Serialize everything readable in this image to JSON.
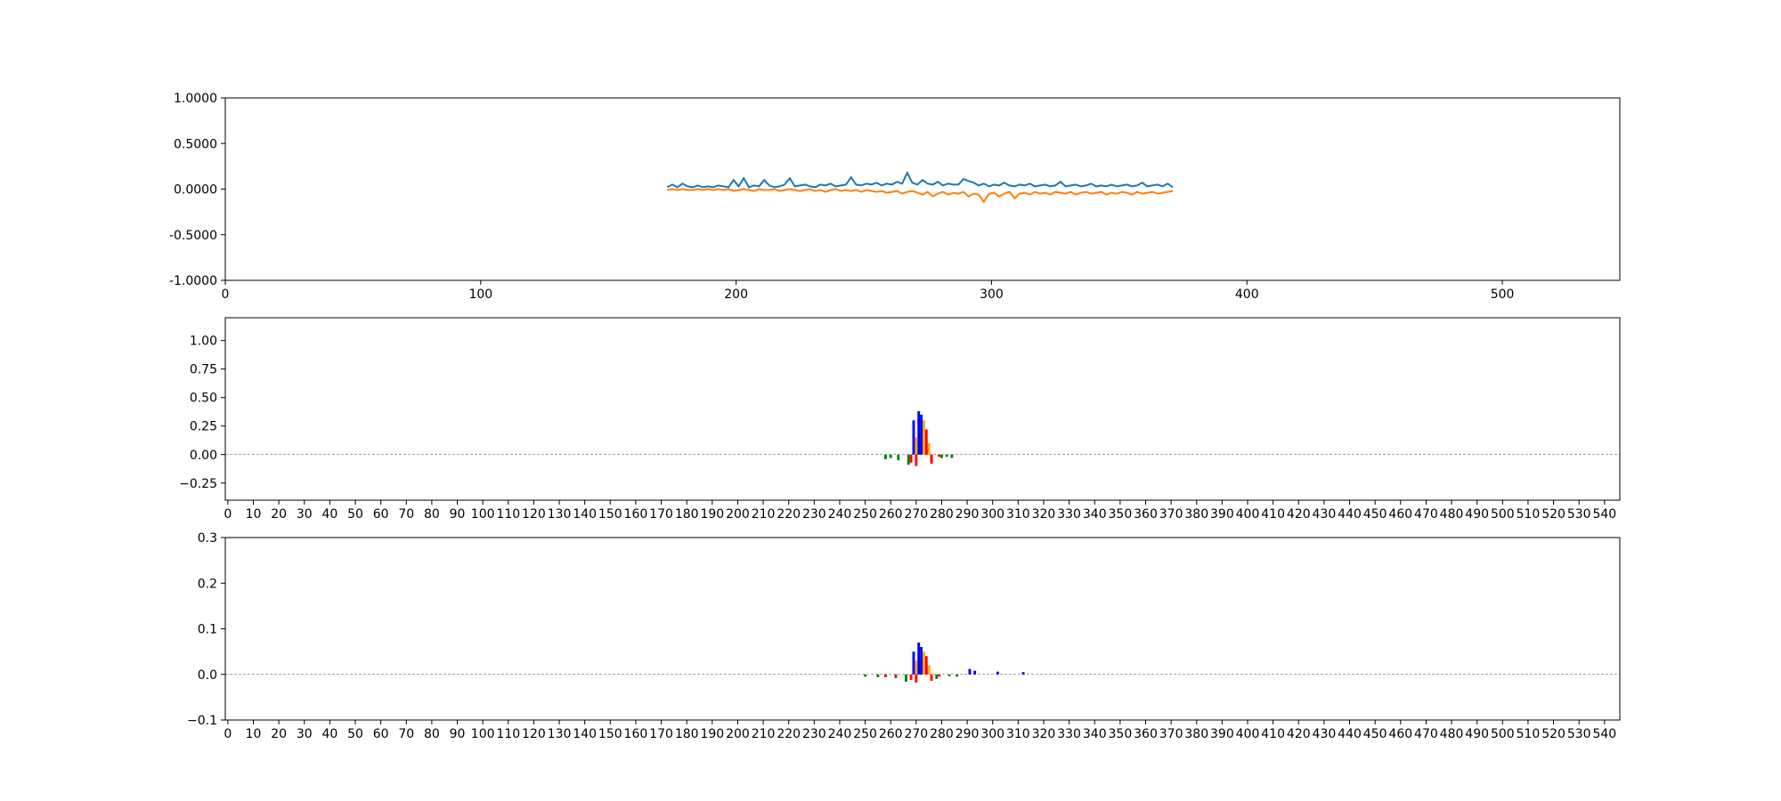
{
  "figure": {
    "background": "#ffffff"
  },
  "chart_data": [
    {
      "id": "panel-1",
      "type": "line",
      "title": "",
      "xlabel": "",
      "ylabel": "",
      "xlim": [
        0,
        546
      ],
      "ylim": [
        -1,
        1
      ],
      "x_ticks": [
        0,
        100,
        200,
        300,
        400,
        500
      ],
      "y_ticks": [
        -1,
        -0.5,
        0,
        0.5,
        1
      ],
      "y_tick_labels": [
        "-1.0000",
        "-0.5000",
        "0.0000",
        "0.5000",
        "1.0000"
      ],
      "grid": false,
      "series": [
        {
          "color": "#1f77b4",
          "x": [
            173,
            175,
            177,
            179,
            181,
            183,
            185,
            187,
            189,
            191,
            193,
            195,
            197,
            199,
            201,
            203,
            205,
            207,
            209,
            211,
            213,
            215,
            217,
            219,
            221,
            223,
            225,
            227,
            229,
            231,
            233,
            235,
            237,
            239,
            241,
            243,
            245,
            247,
            249,
            251,
            253,
            255,
            257,
            259,
            261,
            263,
            265,
            267,
            269,
            271,
            273,
            275,
            277,
            279,
            281,
            283,
            285,
            287,
            289,
            291,
            293,
            295,
            297,
            299,
            301,
            303,
            305,
            307,
            309,
            311,
            313,
            315,
            317,
            319,
            321,
            323,
            325,
            327,
            329,
            331,
            333,
            335,
            337,
            339,
            341,
            343,
            345,
            347,
            349,
            351,
            353,
            355,
            357,
            359,
            361,
            363,
            365,
            367,
            369,
            371
          ],
          "y": [
            0.02,
            0.05,
            0.02,
            0.06,
            0.03,
            0.02,
            0.04,
            0.02,
            0.03,
            0.02,
            0.04,
            0.03,
            0.02,
            0.1,
            0.03,
            0.12,
            0.02,
            0.04,
            0.03,
            0.1,
            0.04,
            0.02,
            0.03,
            0.05,
            0.12,
            0.03,
            0.04,
            0.05,
            0.03,
            0.02,
            0.05,
            0.04,
            0.06,
            0.03,
            0.04,
            0.05,
            0.13,
            0.05,
            0.04,
            0.06,
            0.05,
            0.07,
            0.04,
            0.06,
            0.05,
            0.08,
            0.06,
            0.18,
            0.07,
            0.05,
            0.1,
            0.06,
            0.05,
            0.08,
            0.04,
            0.06,
            0.05,
            0.05,
            0.11,
            0.09,
            0.07,
            0.04,
            0.06,
            0.03,
            0.05,
            0.04,
            0.07,
            0.04,
            0.03,
            0.05,
            0.04,
            0.06,
            0.03,
            0.04,
            0.05,
            0.03,
            0.04,
            0.08,
            0.03,
            0.04,
            0.05,
            0.03,
            0.04,
            0.06,
            0.03,
            0.04,
            0.03,
            0.05,
            0.03,
            0.04,
            0.05,
            0.03,
            0.04,
            0.07,
            0.03,
            0.04,
            0.05,
            0.03,
            0.06,
            0.02
          ]
        },
        {
          "color": "#ff7f0e",
          "x": [
            173,
            175,
            177,
            179,
            181,
            183,
            185,
            187,
            189,
            191,
            193,
            195,
            197,
            199,
            201,
            203,
            205,
            207,
            209,
            211,
            213,
            215,
            217,
            219,
            221,
            223,
            225,
            227,
            229,
            231,
            233,
            235,
            237,
            239,
            241,
            243,
            245,
            247,
            249,
            251,
            253,
            255,
            257,
            259,
            261,
            263,
            265,
            267,
            269,
            271,
            273,
            275,
            277,
            279,
            281,
            283,
            285,
            287,
            289,
            291,
            293,
            295,
            297,
            299,
            301,
            303,
            305,
            307,
            309,
            311,
            313,
            315,
            317,
            319,
            321,
            323,
            325,
            327,
            329,
            331,
            333,
            335,
            337,
            339,
            341,
            343,
            345,
            347,
            349,
            351,
            353,
            355,
            357,
            359,
            361,
            363,
            365,
            367,
            369,
            371
          ],
          "y": [
            -0.01,
            0.0,
            -0.01,
            0.0,
            -0.01,
            -0.01,
            0.0,
            -0.01,
            0.0,
            -0.01,
            0.0,
            -0.01,
            0.0,
            -0.02,
            -0.01,
            0.0,
            -0.01,
            -0.02,
            0.0,
            -0.01,
            -0.01,
            0.0,
            -0.02,
            -0.01,
            0.0,
            -0.01,
            -0.02,
            -0.01,
            0.0,
            -0.02,
            -0.01,
            -0.03,
            -0.01,
            0.0,
            -0.02,
            -0.01,
            -0.02,
            -0.01,
            -0.03,
            -0.01,
            -0.02,
            -0.03,
            -0.02,
            -0.04,
            -0.03,
            -0.02,
            -0.05,
            -0.03,
            -0.02,
            -0.04,
            -0.06,
            -0.03,
            -0.08,
            -0.05,
            -0.03,
            -0.06,
            -0.04,
            -0.05,
            -0.03,
            -0.08,
            -0.05,
            -0.06,
            -0.14,
            -0.05,
            -0.04,
            -0.08,
            -0.05,
            -0.03,
            -0.1,
            -0.05,
            -0.04,
            -0.06,
            -0.03,
            -0.05,
            -0.04,
            -0.06,
            -0.03,
            -0.04,
            -0.05,
            -0.03,
            -0.06,
            -0.04,
            -0.03,
            -0.05,
            -0.04,
            -0.03,
            -0.06,
            -0.04,
            -0.05,
            -0.03,
            -0.04,
            -0.06,
            -0.03,
            -0.05,
            -0.04,
            -0.03,
            -0.05,
            -0.04,
            -0.03,
            -0.02
          ]
        }
      ]
    },
    {
      "id": "panel-2",
      "type": "bar",
      "title": "",
      "xlabel": "",
      "ylabel": "",
      "xlim": [
        -1,
        546
      ],
      "ylim": [
        -0.4,
        1.2
      ],
      "x_ticks": [
        0,
        10,
        20,
        30,
        40,
        50,
        60,
        70,
        80,
        90,
        100,
        110,
        120,
        130,
        140,
        150,
        160,
        170,
        180,
        190,
        200,
        210,
        220,
        230,
        240,
        250,
        260,
        270,
        280,
        290,
        300,
        310,
        320,
        330,
        340,
        350,
        360,
        370,
        380,
        390,
        400,
        410,
        420,
        430,
        440,
        450,
        460,
        470,
        480,
        490,
        500,
        510,
        520,
        530,
        540
      ],
      "y_ticks": [
        -0.25,
        0,
        0.25,
        0.5,
        0.75,
        1.0
      ],
      "y_tick_labels": [
        "−0.25",
        "0.00",
        "0.25",
        "0.50",
        "0.75",
        "1.00"
      ],
      "grid": false,
      "series": [
        {
          "color": "#008000",
          "x": [
            258,
            260,
            263,
            267,
            271,
            274,
            276,
            280,
            282,
            284
          ],
          "y": [
            -0.04,
            -0.03,
            -0.05,
            -0.09,
            0.1,
            0.05,
            -0.06,
            -0.03,
            -0.02,
            -0.03
          ]
        },
        {
          "color": "#0000ff",
          "x": [
            269,
            271,
            272
          ],
          "y": [
            0.3,
            0.38,
            0.35
          ]
        },
        {
          "color": "#ffa500",
          "x": [
            270,
            273,
            275
          ],
          "y": [
            0.15,
            0.3,
            0.1
          ]
        },
        {
          "color": "#ff0000",
          "x": [
            268,
            270,
            274,
            276,
            279
          ],
          "y": [
            -0.07,
            -0.1,
            0.22,
            -0.08,
            -0.02
          ]
        }
      ]
    },
    {
      "id": "panel-3",
      "type": "bar",
      "title": "",
      "xlabel": "",
      "ylabel": "",
      "xlim": [
        -1,
        546
      ],
      "ylim": [
        -0.1,
        0.3
      ],
      "x_ticks": [
        0,
        10,
        20,
        30,
        40,
        50,
        60,
        70,
        80,
        90,
        100,
        110,
        120,
        130,
        140,
        150,
        160,
        170,
        180,
        190,
        200,
        210,
        220,
        230,
        240,
        250,
        260,
        270,
        280,
        290,
        300,
        310,
        320,
        330,
        340,
        350,
        360,
        370,
        380,
        390,
        400,
        410,
        420,
        430,
        440,
        450,
        460,
        470,
        480,
        490,
        500,
        510,
        520,
        530,
        540
      ],
      "y_ticks": [
        -0.1,
        0.0,
        0.1,
        0.2,
        0.3
      ],
      "y_tick_labels": [
        "−0.1",
        "0.0",
        "0.1",
        "0.2",
        "0.3"
      ],
      "grid": false,
      "series": [
        {
          "color": "#008000",
          "x": [
            250,
            255,
            262,
            266,
            271,
            274,
            278,
            283,
            286
          ],
          "y": [
            -0.005,
            -0.006,
            -0.008,
            -0.016,
            0.02,
            0.01,
            -0.01,
            -0.004,
            -0.005
          ]
        },
        {
          "color": "#0000ff",
          "x": [
            269,
            271,
            272,
            291,
            293,
            302,
            312
          ],
          "y": [
            0.05,
            0.07,
            0.06,
            0.012,
            0.008,
            0.006,
            0.005
          ]
        },
        {
          "color": "#ffa500",
          "x": [
            270,
            273,
            275
          ],
          "y": [
            0.03,
            0.05,
            0.02
          ]
        },
        {
          "color": "#ff0000",
          "x": [
            258,
            262,
            268,
            270,
            274,
            276,
            279
          ],
          "y": [
            -0.006,
            -0.005,
            -0.012,
            -0.018,
            0.04,
            -0.014,
            -0.005
          ]
        }
      ]
    }
  ]
}
